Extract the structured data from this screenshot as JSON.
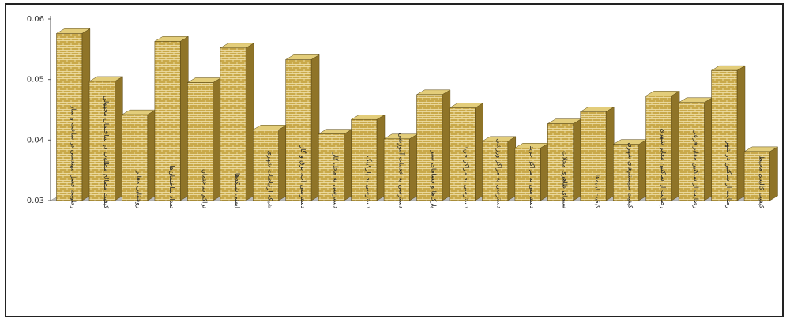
{
  "chart_data": {
    "type": "bar",
    "style": "3d-bricks",
    "categories": [
      "رطوبت فصل مهندسی در ساخت و ساز",
      "کیفیت مصالح مطلوب در ساختمان مجهولی",
      "روشنایی معابر",
      "تعداد ساختمان‌ها",
      "تراکم ساختمان",
      "ایمنی شبکه‌ها",
      "شبکه ارتباطات شهری",
      "دسترسی آب، برق و گاز",
      "دسترسی به محل کار",
      "دسترسی به پارکینگ",
      "دسترسی به خدمات آموزشی",
      "پارک‌ها و فضاهای سبز",
      "دسترسی به مراکز خرید",
      "دسترسی به مراکز ورزشی",
      "دسترسی به مراکز خرید",
      "سیمای ظاهری محلات",
      "کیفیت ابنیه‌ها",
      "کیفیت سیستم‌های شهری",
      "رضایت از ساکنین معابر شهری",
      "رضایت از ساکنین معابر فرعی",
      "رضایت از ساکنین در شهر",
      "کیفیت کالبدی محیط"
    ],
    "values": [
      0.0576,
      0.0497,
      0.0442,
      0.0563,
      0.0495,
      0.0552,
      0.0417,
      0.0533,
      0.041,
      0.0434,
      0.0402,
      0.0475,
      0.0453,
      0.0398,
      0.0387,
      0.0427,
      0.0447,
      0.0393,
      0.0473,
      0.0462,
      0.0515,
      0.0381
    ],
    "ylim": [
      0.03,
      0.06
    ],
    "yticks": [
      "0.03",
      "0.04",
      "0.05",
      "0.06"
    ],
    "title": "",
    "xlabel": "",
    "ylabel": "",
    "grid": false,
    "legend": "none",
    "colors": {
      "bar_front": "#c9a94a",
      "bar_top": "#e3cd7a",
      "bar_side": "#8f7428",
      "brick_line": "#f4e7b4",
      "axis": "#555555",
      "floor": "#bcbcbc"
    }
  }
}
